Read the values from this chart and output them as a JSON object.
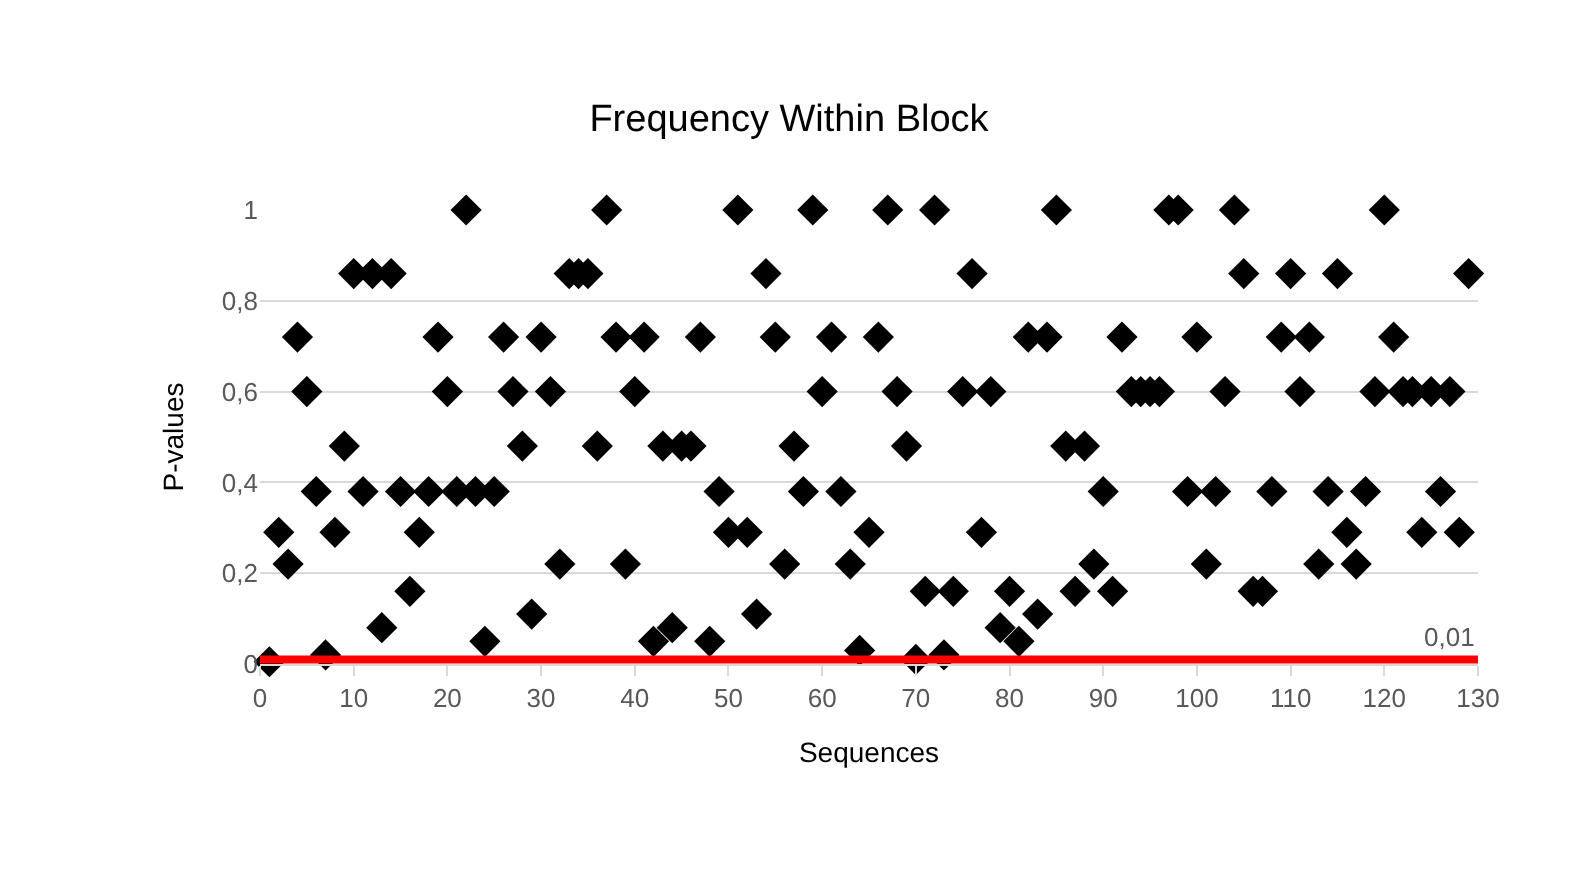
{
  "chart_data": {
    "type": "scatter",
    "title": "Frequency Within Block",
    "xlabel": "Sequences",
    "ylabel": "P-values",
    "x": [
      1,
      2,
      3,
      4,
      5,
      6,
      7,
      8,
      9,
      10,
      11,
      12,
      13,
      14,
      15,
      16,
      17,
      18,
      19,
      20,
      21,
      22,
      23,
      24,
      25,
      26,
      27,
      28,
      29,
      30,
      31,
      32,
      33,
      34,
      35,
      36,
      37,
      38,
      39,
      40,
      41,
      42,
      43,
      44,
      45,
      46,
      47,
      48,
      49,
      50,
      51,
      52,
      53,
      54,
      55,
      56,
      57,
      58,
      59,
      60,
      61,
      62,
      63,
      64,
      65,
      66,
      67,
      68,
      69,
      70,
      71,
      72,
      73,
      74,
      75,
      76,
      77,
      78,
      79,
      80,
      81,
      82,
      83,
      84,
      85,
      86,
      87,
      88,
      89,
      90,
      91,
      92,
      93,
      94,
      95,
      96,
      97,
      98,
      99,
      100,
      101,
      102,
      103,
      104,
      105,
      106,
      107,
      108,
      109,
      110,
      111,
      112,
      113,
      114,
      115,
      116,
      117,
      118,
      119,
      120,
      121,
      122,
      123,
      124,
      125,
      126,
      127,
      128,
      129
    ],
    "series": [
      {
        "color": "#000000",
        "values": [
          0.005,
          0.29,
          0.22,
          0.72,
          0.6,
          0.38,
          0.02,
          0.29,
          0.48,
          0.86,
          0.38,
          0.86,
          0.08,
          0.86,
          0.38,
          0.16,
          0.29,
          0.38,
          0.72,
          0.6,
          0.38,
          1,
          0.38,
          0.05,
          0.38,
          0.72,
          0.6,
          0.48,
          0.11,
          0.72,
          0.6,
          0.22,
          0.86,
          0.86,
          0.86,
          0.48,
          1,
          0.72,
          0.22,
          0.6,
          0.72,
          0.05,
          0.48,
          0.08,
          0.48,
          0.48,
          0.72,
          0.05,
          0.38,
          0.29,
          1,
          0.29,
          0.11,
          0.86,
          0.72,
          0.22,
          0.48,
          0.38,
          1,
          0.6,
          0.72,
          0.38,
          0.22,
          0.03,
          0.29,
          0.72,
          1,
          0.6,
          0.48,
          0.01,
          0.16,
          1,
          0.02,
          0.16,
          0.6,
          0.86,
          0.29,
          0.6,
          0.08,
          0.16,
          0.05,
          0.72,
          0.11,
          0.72,
          1,
          0.48,
          0.16,
          0.48,
          0.22,
          0.38,
          0.16,
          0.72,
          0.6,
          0.6,
          0.6,
          0.6,
          1,
          1,
          0.38,
          0.72,
          0.22,
          0.38,
          0.6,
          1,
          0.86,
          0.16,
          0.16,
          0.38,
          0.72,
          0.86,
          0.6,
          0.72,
          0.22,
          0.38,
          0.86,
          0.29,
          0.22,
          0.38,
          0.6,
          1,
          0.72,
          0.6,
          0.6,
          0.29,
          0.6,
          0.38,
          0.6,
          0.29,
          0.86
        ]
      }
    ],
    "xlim": [
      0,
      130
    ],
    "xticks": [
      0,
      10,
      20,
      30,
      40,
      50,
      60,
      70,
      80,
      90,
      100,
      110,
      120,
      130
    ],
    "ylim": [
      0,
      1
    ],
    "yticks": [
      0,
      {
        "value": 0.2,
        "label": "0,2"
      },
      {
        "value": 0.4,
        "label": "0,4"
      },
      {
        "value": 0.6,
        "label": "0,6"
      },
      {
        "value": 0.8,
        "label": "0,8"
      },
      1
    ],
    "ref_lines": [
      {
        "axis": "y",
        "value": 0.01,
        "label": "0,01",
        "color": "#ff0000"
      }
    ],
    "grid": "y",
    "marker": "diamond",
    "legend": false
  }
}
